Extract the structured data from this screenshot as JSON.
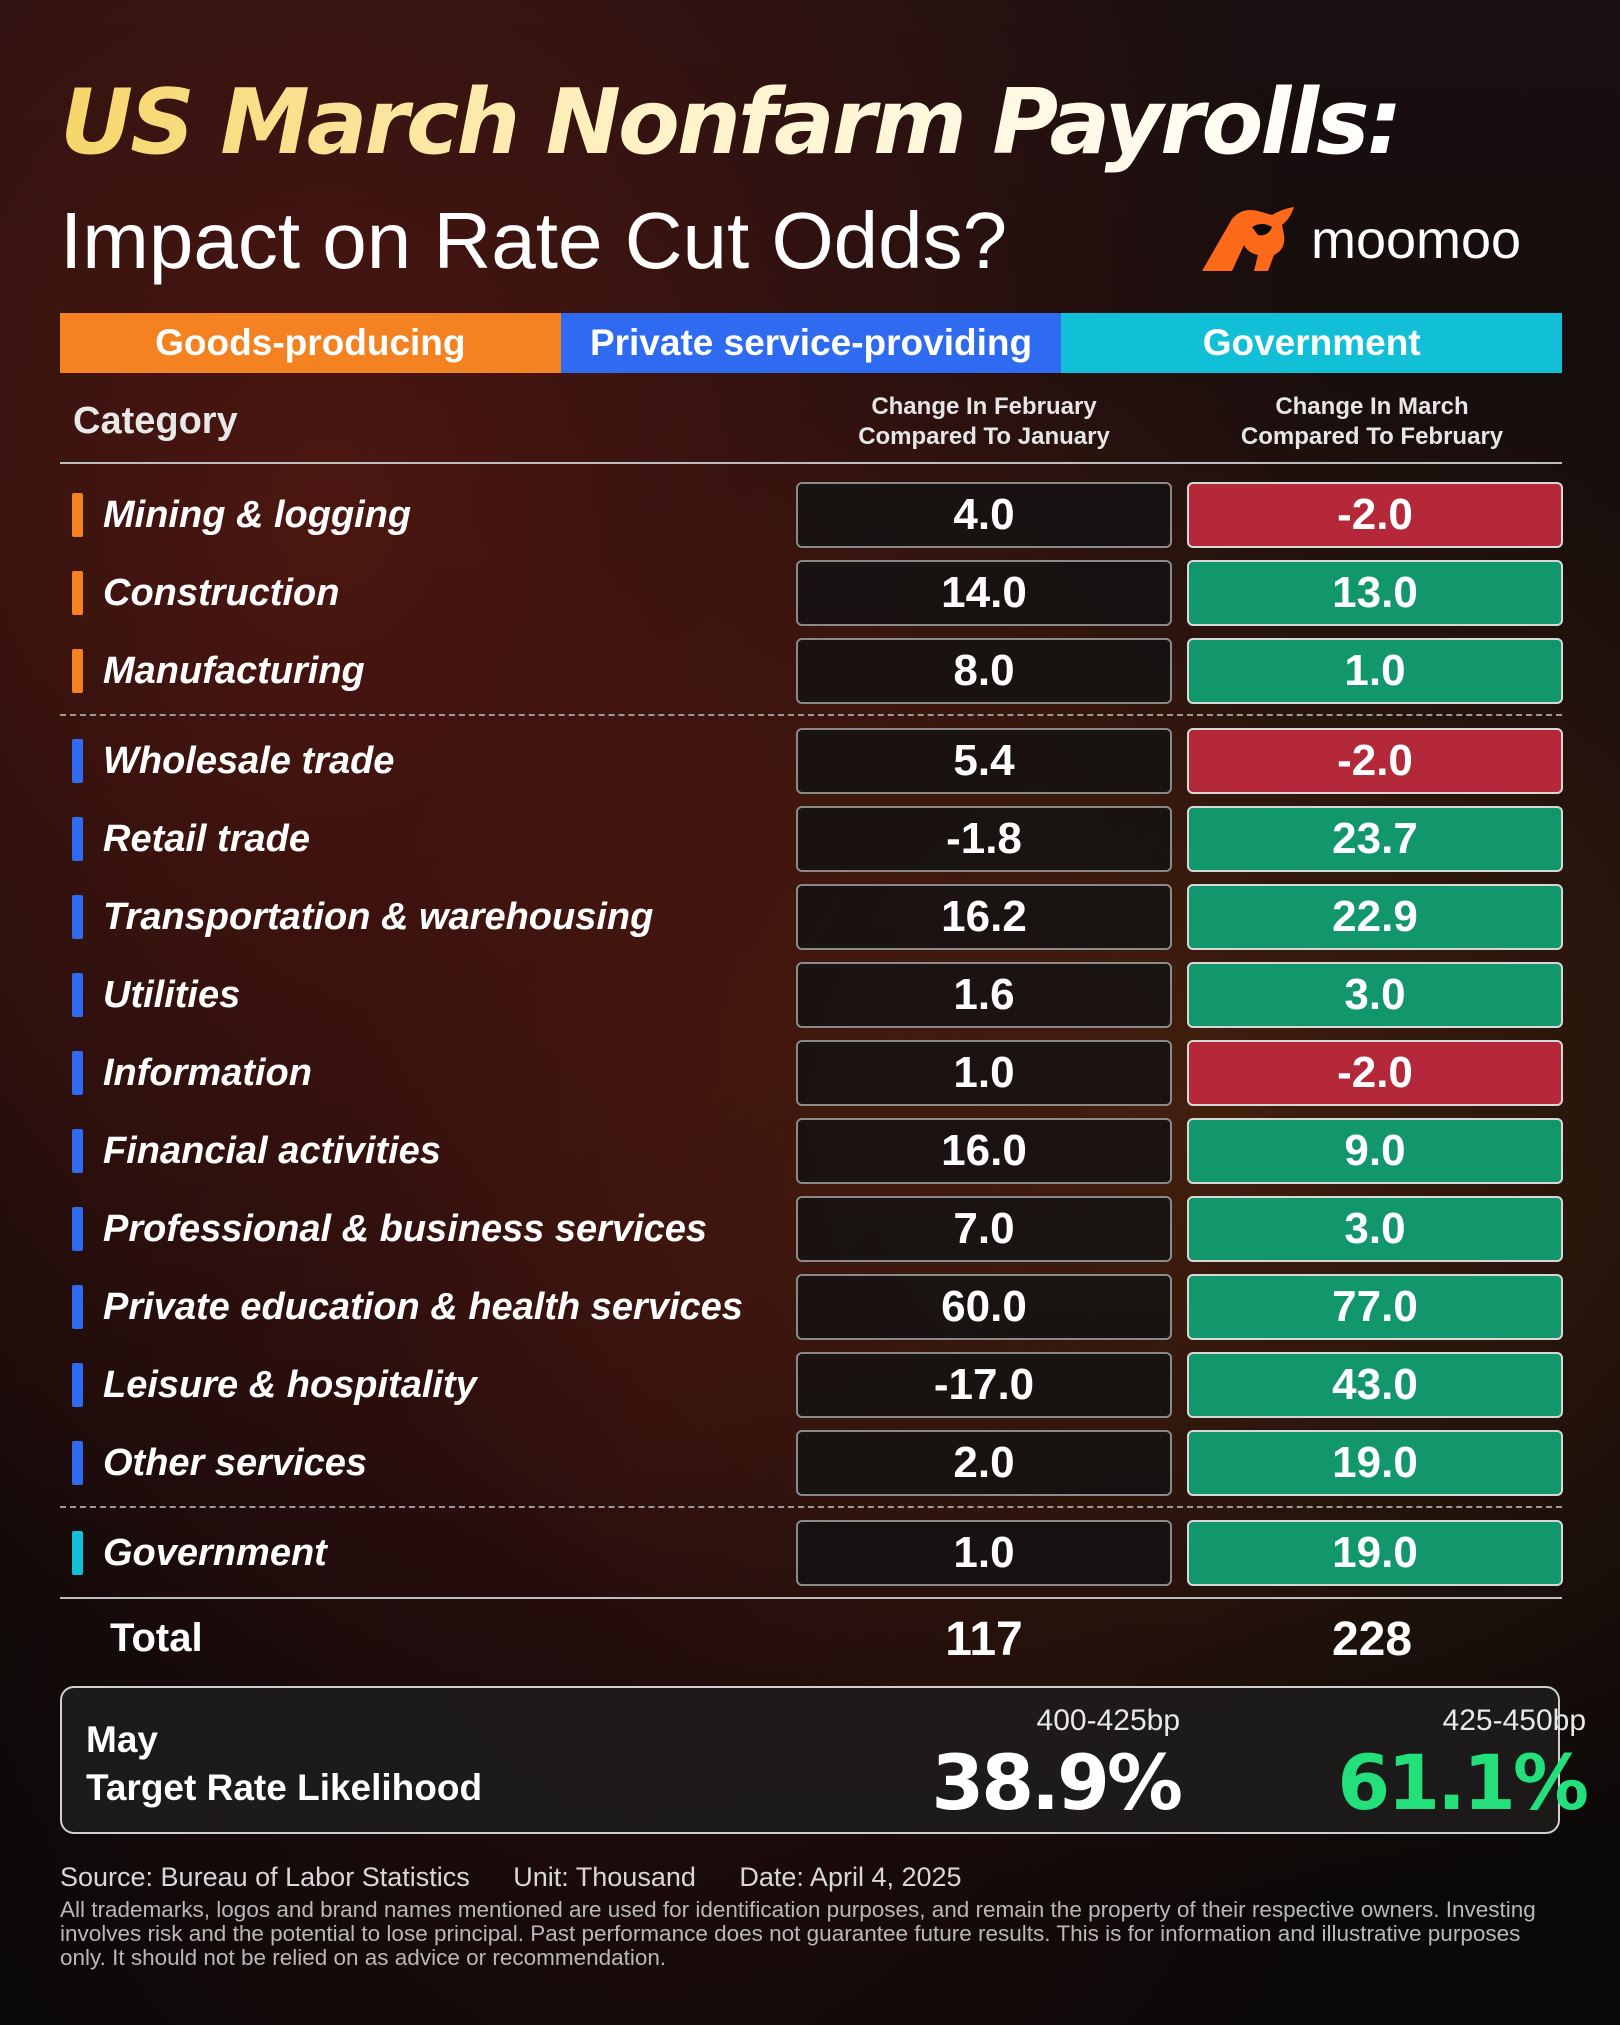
{
  "header": {
    "title_line1": "US March Nonfarm Payrolls:",
    "title_line2": "Impact on Rate Cut Odds?",
    "brand": "moomoo"
  },
  "legend": [
    "Goods-producing",
    "Private service-providing",
    "Government"
  ],
  "columns": {
    "category": "Category",
    "feb_line1": "Change In  February",
    "feb_line2": "Compared To January",
    "mar_line1": "Change In March",
    "mar_line2": "Compared To  February"
  },
  "rows": [
    {
      "label": "Mining & logging",
      "feb": "4.0",
      "mar": "-2.0",
      "group": "goods",
      "mar_sign": "neg"
    },
    {
      "label": "Construction",
      "feb": "14.0",
      "mar": "13.0",
      "group": "goods",
      "mar_sign": "pos"
    },
    {
      "label": "Manufacturing",
      "feb": "8.0",
      "mar": "1.0",
      "group": "goods",
      "mar_sign": "pos"
    },
    {
      "label": "Wholesale trade",
      "feb": "5.4",
      "mar": "-2.0",
      "group": "services",
      "mar_sign": "neg"
    },
    {
      "label": "Retail trade",
      "feb": "-1.8",
      "mar": "23.7",
      "group": "services",
      "mar_sign": "pos"
    },
    {
      "label": "Transportation & warehousing",
      "feb": "16.2",
      "mar": "22.9",
      "group": "services",
      "mar_sign": "pos"
    },
    {
      "label": "Utilities",
      "feb": "1.6",
      "mar": "3.0",
      "group": "services",
      "mar_sign": "pos"
    },
    {
      "label": "Information",
      "feb": "1.0",
      "mar": "-2.0",
      "group": "services",
      "mar_sign": "neg"
    },
    {
      "label": "Financial activities",
      "feb": "16.0",
      "mar": "9.0",
      "group": "services",
      "mar_sign": "pos"
    },
    {
      "label": "Professional & business services",
      "feb": "7.0",
      "mar": "3.0",
      "group": "services",
      "mar_sign": "pos"
    },
    {
      "label": "Private education & health services",
      "feb": "60.0",
      "mar": "77.0",
      "group": "services",
      "mar_sign": "pos"
    },
    {
      "label": "Leisure & hospitality",
      "feb": "-17.0",
      "mar": "43.0",
      "group": "services",
      "mar_sign": "pos"
    },
    {
      "label": "Other services",
      "feb": "2.0",
      "mar": "19.0",
      "group": "services",
      "mar_sign": "pos"
    },
    {
      "label": "Government",
      "feb": "1.0",
      "mar": "19.0",
      "group": "government",
      "mar_sign": "pos"
    }
  ],
  "total": {
    "label": "Total",
    "feb": "117",
    "mar": "228"
  },
  "rate": {
    "month": "May",
    "label": "Target Rate Likelihood",
    "range1": "400-425bp",
    "pct1": "38.9%",
    "range2": "425-450bp",
    "pct2": "61.1%"
  },
  "footer": {
    "source": "Source: Bureau of Labor Statistics",
    "unit": "Unit: Thousand",
    "date": "Date: April 4, 2025",
    "disclaimer": "All trademarks, logos and brand names mentioned are used for identification purposes, and remain the property of their respective owners. Investing involves risk and the potential to lose principal. Past performance does not guarantee future results. This is for information and illustrative purposes only. It should not be relied on as advice or recommendation."
  },
  "colors": {
    "goods": "#f58220",
    "services": "#2f6bf0",
    "government": "#11bfd7",
    "positive": "#12966b",
    "negative": "#b4283a",
    "highlight": "#23e07a"
  }
}
